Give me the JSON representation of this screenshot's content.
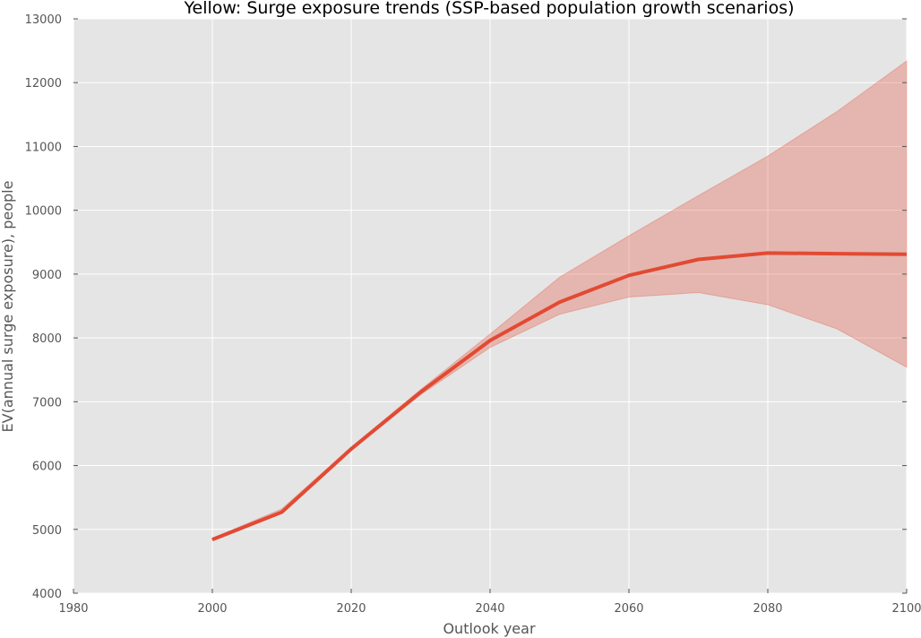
{
  "chart_data": {
    "type": "line",
    "title": "Yellow: Surge exposure trends (SSP-based population growth scenarios)",
    "xlabel": "Outlook year",
    "ylabel": "EV(annual surge exposure), people",
    "xlim": [
      1980,
      2100
    ],
    "ylim": [
      4000,
      13000
    ],
    "xticks": [
      1980,
      2000,
      2020,
      2040,
      2060,
      2080,
      2100
    ],
    "yticks": [
      4000,
      5000,
      6000,
      7000,
      8000,
      9000,
      10000,
      11000,
      12000,
      13000
    ],
    "grid": true,
    "background_color": "#e5e5e5",
    "grid_color": "#ffffff",
    "line_color": "#e24a33",
    "band_color": "#e24a33",
    "series": [
      {
        "x": [
          2000,
          2010,
          2020,
          2030,
          2040,
          2050,
          2060,
          2070,
          2080,
          2090,
          2100
        ],
        "y": [
          4840,
          5270,
          6260,
          7150,
          7960,
          8560,
          8980,
          9230,
          9330,
          9320,
          9310
        ],
        "band_upper": [
          4860,
          5320,
          6290,
          7190,
          8060,
          8950,
          9600,
          10230,
          10850,
          11550,
          12340
        ],
        "band_lower": [
          4830,
          5250,
          6240,
          7110,
          7850,
          8370,
          8640,
          8710,
          8520,
          8140,
          7540
        ]
      }
    ]
  }
}
